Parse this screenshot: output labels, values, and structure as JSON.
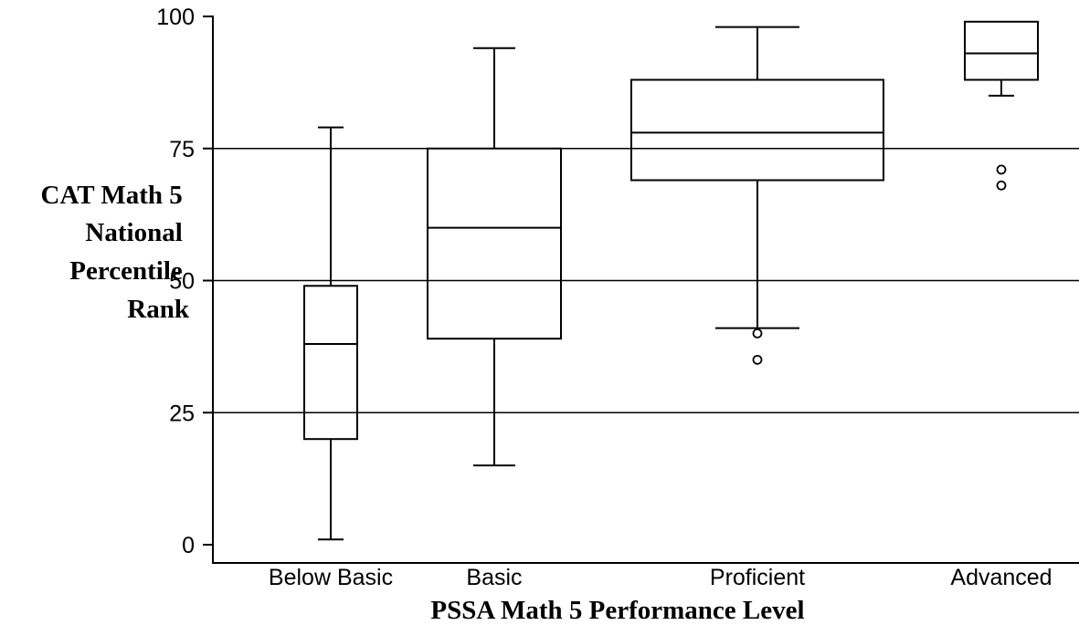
{
  "chart_data": {
    "type": "boxplot",
    "title": "",
    "xlabel": "PSSA Math 5 Performance Level",
    "ylabel_lines": [
      "CAT Math 5",
      "National",
      "Percentile",
      "Rank"
    ],
    "ylim": [
      0,
      100
    ],
    "yticks": [
      0,
      25,
      50,
      75,
      100
    ],
    "grid": "horizontal at 25, 50, 75",
    "categories": [
      "Below Basic",
      "Basic",
      "Proficient",
      "Advanced"
    ],
    "boxes": [
      {
        "category": "Below Basic",
        "whisker_low": 1,
        "q1": 20,
        "median": 38,
        "q3": 49,
        "whisker_high": 79,
        "outliers": []
      },
      {
        "category": "Basic",
        "whisker_low": 15,
        "q1": 39,
        "median": 60,
        "q3": 75,
        "whisker_high": 94,
        "outliers": []
      },
      {
        "category": "Proficient",
        "whisker_low": 41,
        "q1": 69,
        "median": 78,
        "q3": 88,
        "whisker_high": 98,
        "outliers": [
          40,
          35
        ]
      },
      {
        "category": "Advanced",
        "whisker_low": 85,
        "q1": 88,
        "median": 93,
        "q3": 99,
        "whisker_high": 99,
        "outliers": [
          71,
          68
        ]
      }
    ]
  }
}
